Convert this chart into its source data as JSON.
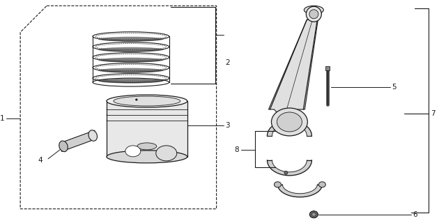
{
  "bg_color": "#ffffff",
  "line_color": "#1a1a1a",
  "fig_width": 6.3,
  "fig_height": 3.2,
  "lw": 0.9,
  "label_fs": 7.5
}
